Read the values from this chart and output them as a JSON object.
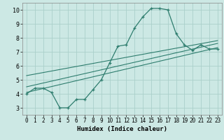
{
  "xlabel": "Humidex (Indice chaleur)",
  "background_color": "#cce8e4",
  "grid_color": "#aacfca",
  "line_color": "#2e7d6e",
  "xlim": [
    -0.5,
    23.5
  ],
  "ylim": [
    2.5,
    10.5
  ],
  "xticks": [
    0,
    1,
    2,
    3,
    4,
    5,
    6,
    7,
    8,
    9,
    10,
    11,
    12,
    13,
    14,
    15,
    16,
    17,
    18,
    19,
    20,
    21,
    22,
    23
  ],
  "yticks": [
    3,
    4,
    5,
    6,
    7,
    8,
    9,
    10
  ],
  "main_x": [
    0,
    1,
    2,
    3,
    4,
    5,
    6,
    7,
    8,
    9,
    10,
    11,
    12,
    13,
    14,
    15,
    16,
    17,
    18,
    19,
    20,
    21,
    22,
    23
  ],
  "main_y": [
    4.0,
    4.4,
    4.4,
    4.1,
    3.0,
    3.0,
    3.6,
    3.6,
    4.3,
    5.0,
    6.2,
    7.4,
    7.5,
    8.7,
    9.5,
    10.1,
    10.1,
    10.0,
    8.3,
    7.5,
    7.1,
    7.5,
    7.2,
    7.2
  ],
  "trend1_x": [
    0,
    23
  ],
  "trend1_y": [
    4.5,
    7.6
  ],
  "trend2_x": [
    0,
    23
  ],
  "trend2_y": [
    5.3,
    7.8
  ],
  "trend3_x": [
    0,
    23
  ],
  "trend3_y": [
    4.1,
    7.3
  ],
  "tick_fontsize": 5.5,
  "xlabel_fontsize": 6.5
}
